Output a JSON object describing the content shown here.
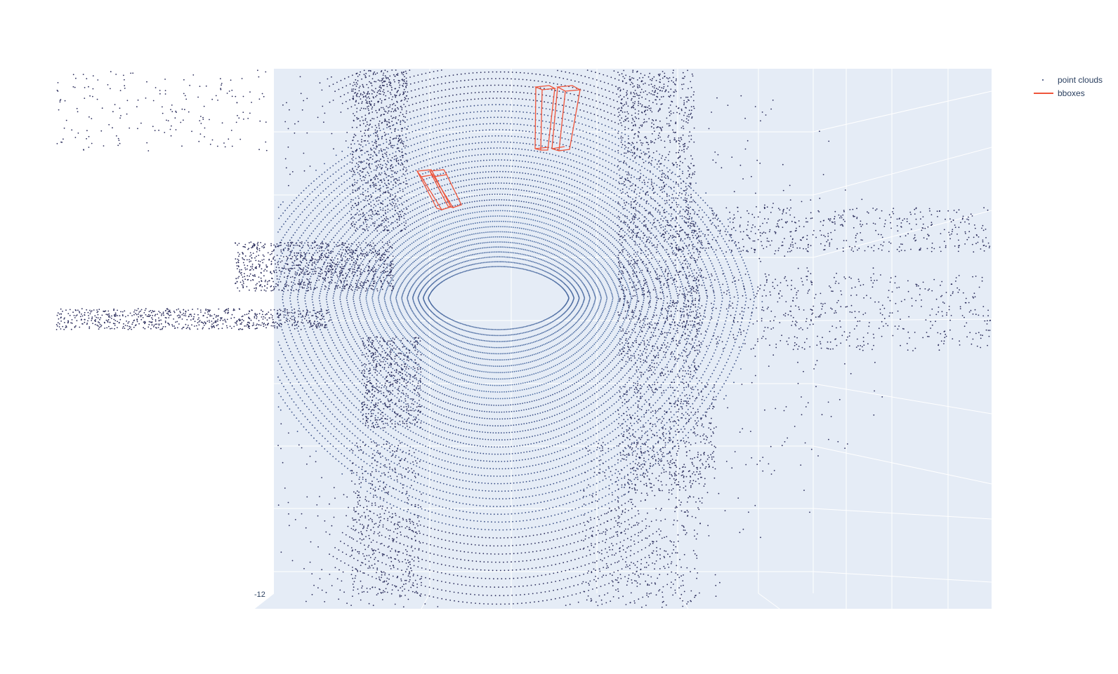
{
  "chart_data": {
    "type": "scatter",
    "title": "",
    "legend": {
      "placement": "top-right",
      "entries": [
        {
          "name": "point clouds",
          "kind": "markers",
          "color": "#2f3d6e"
        },
        {
          "name": "bboxes",
          "kind": "lines",
          "color": "#ef553b"
        }
      ]
    },
    "scene": {
      "background": "#e5ecf6",
      "grid": true,
      "gridcolor": "#ffffff",
      "visible_tick_labels": [
        "-12"
      ]
    },
    "series": [
      {
        "name": "point clouds",
        "mode": "markers",
        "colorscale": [
          "#2b2d5c",
          "#3a4f86",
          "#4a6aa0"
        ],
        "description_source": "lidar scan rings around sensor"
      },
      {
        "name": "bboxes",
        "mode": "lines",
        "color": "#ef553b",
        "box_count": 4
      }
    ]
  }
}
